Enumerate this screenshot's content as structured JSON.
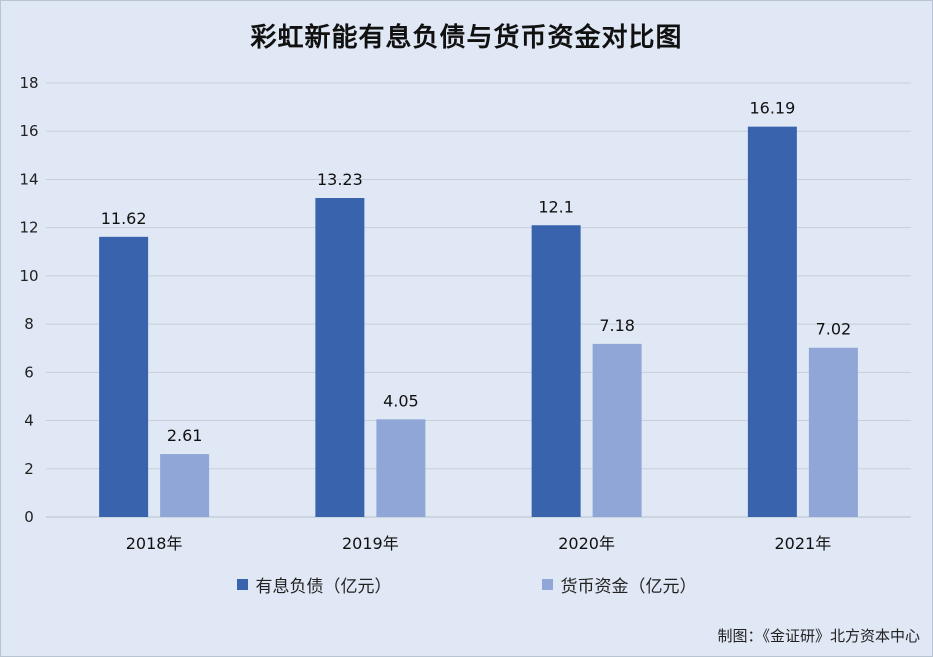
{
  "title": "彩虹新能有息负债与货币资金对比图",
  "credit": "制图：《金证研》北方资本中心",
  "colors": {
    "series1": "#3a63ad",
    "series2": "#8fa6d6",
    "grid": "#c8cfd9",
    "background": "#dfe8f4"
  },
  "chart_data": {
    "type": "bar",
    "title": "彩虹新能有息负债与货币资金对比图",
    "categories": [
      "2018年",
      "2019年",
      "2020年",
      "2021年"
    ],
    "series": [
      {
        "name": "有息负债（亿元）",
        "values": [
          11.62,
          13.23,
          12.1,
          16.19
        ],
        "value_labels": [
          "11.62",
          "13.23",
          "12.1",
          "16.19"
        ]
      },
      {
        "name": "货币资金（亿元）",
        "values": [
          2.61,
          4.05,
          7.18,
          7.02
        ],
        "value_labels": [
          "2.61",
          "4.05",
          "7.18",
          "7.02"
        ]
      }
    ],
    "ylim": [
      0,
      18
    ],
    "yticks": [
      "0",
      "2",
      "4",
      "6",
      "8",
      "10",
      "12",
      "14",
      "16",
      "18"
    ],
    "grid": true,
    "legend": "bottom"
  }
}
